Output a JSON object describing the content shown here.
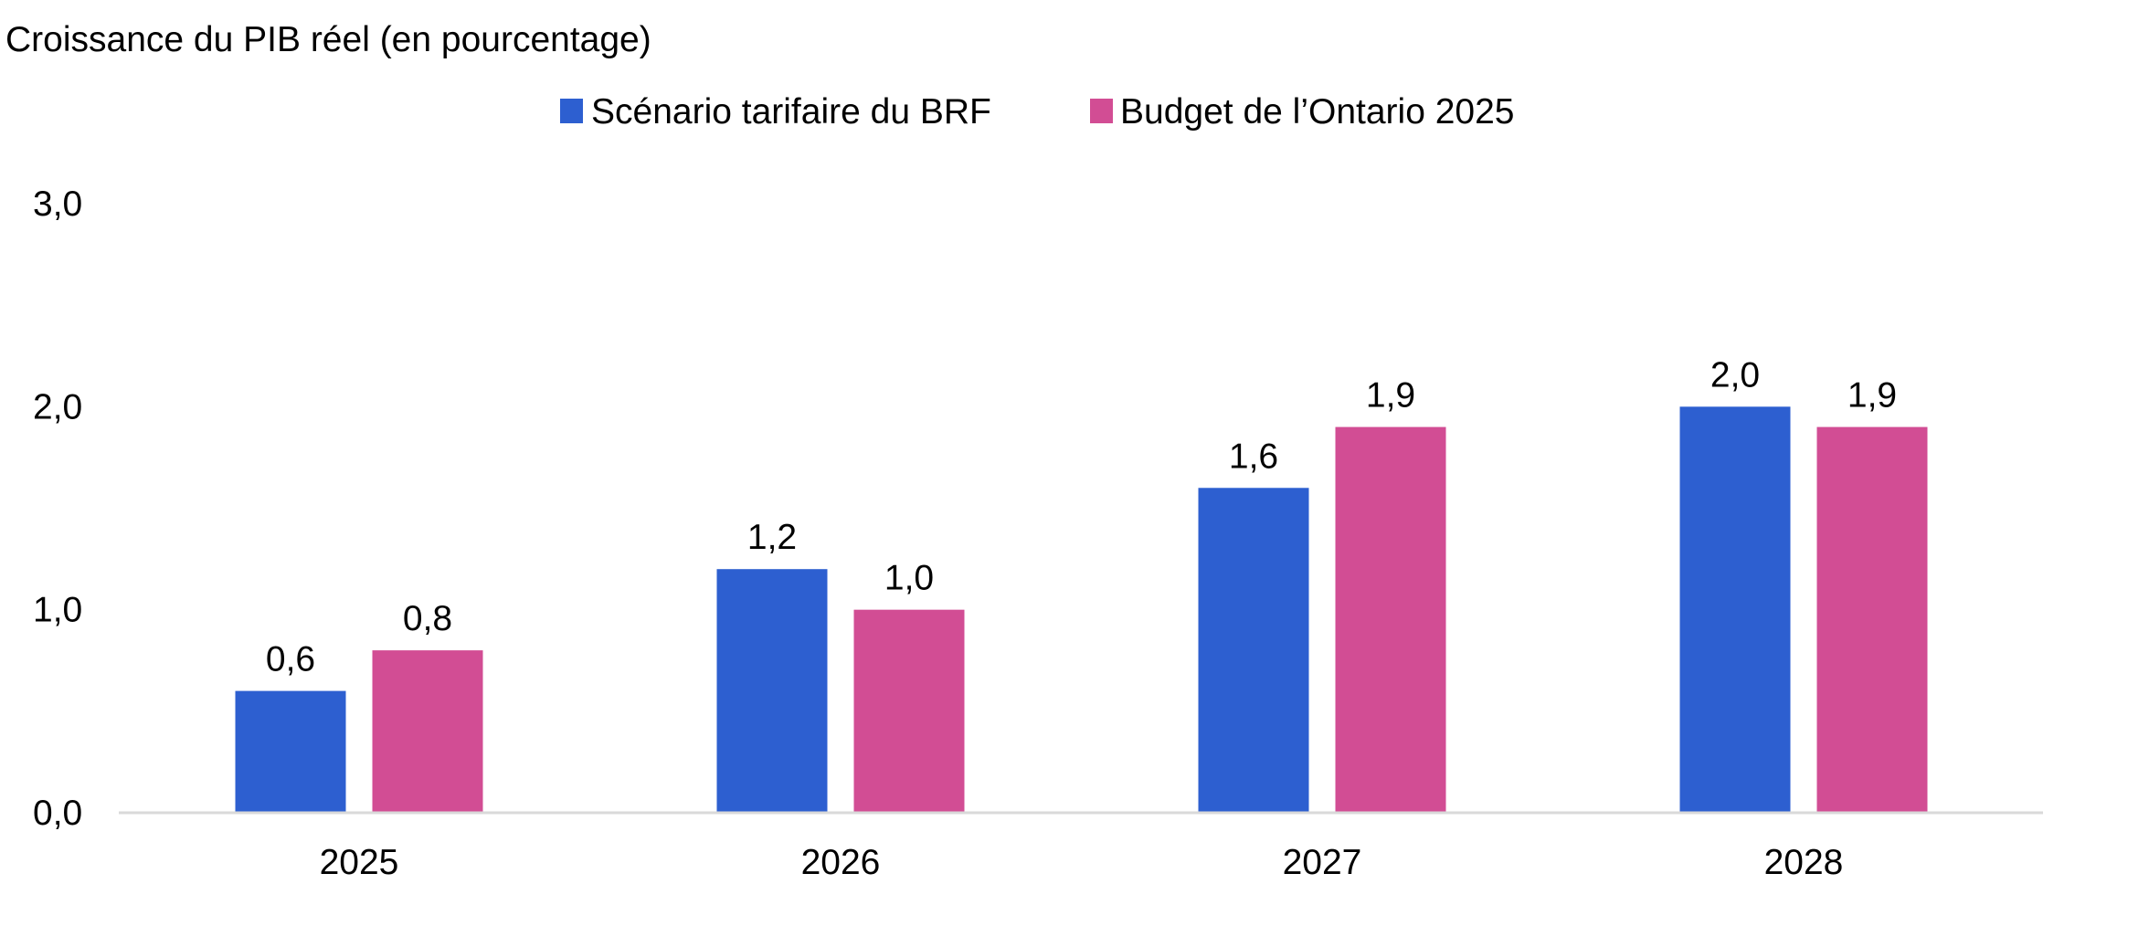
{
  "chart_data": {
    "type": "bar",
    "title": "Croissance du PIB réel (en pourcentage)",
    "xlabel": "",
    "ylabel": "",
    "categories": [
      "2025",
      "2026",
      "2027",
      "2028"
    ],
    "series": [
      {
        "name": "Scénario tarifaire du BRF",
        "color": "#2d5fd0",
        "values": [
          0.6,
          1.2,
          1.6,
          2.0
        ],
        "labels": [
          "0,6",
          "1,2",
          "1,6",
          "2,0"
        ]
      },
      {
        "name": "Budget de l’Ontario 2025",
        "color": "#d24d94",
        "values": [
          0.8,
          1.0,
          1.9,
          1.9
        ],
        "labels": [
          "0,8",
          "1,0",
          "1,9",
          "1,9"
        ]
      }
    ],
    "ylim": [
      0,
      3
    ],
    "yticks": [
      0,
      1,
      2,
      3
    ],
    "ytick_labels": [
      "0,0",
      "1,0",
      "2,0",
      "3,0"
    ],
    "grid": false,
    "legend_position": "top-center",
    "axis_color": "#d9d9d9"
  }
}
